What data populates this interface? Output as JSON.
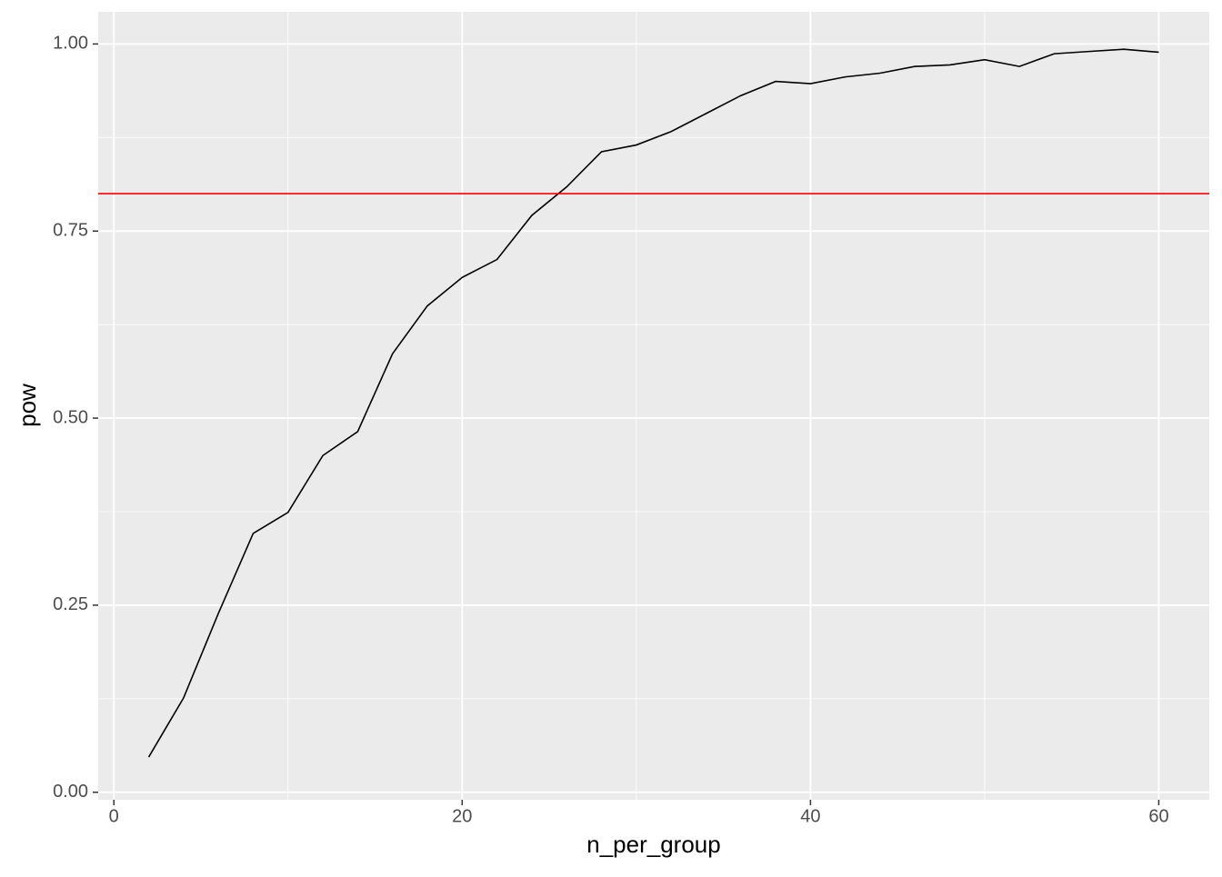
{
  "chart_data": {
    "type": "line",
    "x_label": "n_per_group",
    "y_label": "pow",
    "x": [
      2,
      4,
      6,
      8,
      10,
      12,
      14,
      16,
      18,
      20,
      22,
      24,
      26,
      28,
      30,
      32,
      34,
      36,
      38,
      40,
      42,
      44,
      46,
      48,
      50,
      52,
      54,
      56,
      58,
      60
    ],
    "series": [
      {
        "color": "#000000",
        "values": [
          0.047,
          0.126,
          0.239,
          0.346,
          0.374,
          0.45,
          0.482,
          0.586,
          0.65,
          0.688,
          0.712,
          0.771,
          0.809,
          0.856,
          0.865,
          0.883,
          0.907,
          0.931,
          0.95,
          0.947,
          0.956,
          0.961,
          0.97,
          0.972,
          0.979,
          0.97,
          0.987,
          0.99,
          0.993,
          0.989
        ]
      }
    ],
    "hline": {
      "value": 0.8,
      "color": "#ff0000"
    },
    "xlim": [
      -0.9,
      62.9
    ],
    "ylim": [
      -0.01,
      1.043
    ],
    "xticks": [
      0,
      20,
      40,
      60
    ],
    "yticks": [
      {
        "value": 0,
        "label": "0.00"
      },
      {
        "value": 0.25,
        "label": "0.25"
      },
      {
        "value": 0.5,
        "label": "0.50"
      },
      {
        "value": 0.75,
        "label": "0.75"
      },
      {
        "value": 1,
        "label": "1.00"
      }
    ],
    "x_minor_ticks": [
      10,
      30,
      50
    ],
    "y_minor_ticks": [
      0.125,
      0.375,
      0.625,
      0.875
    ],
    "grid": true
  }
}
